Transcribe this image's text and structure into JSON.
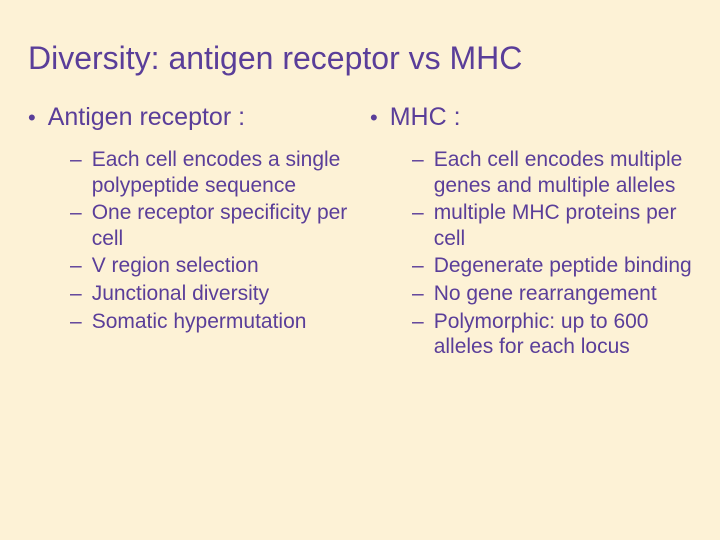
{
  "title": "Diversity: antigen receptor vs MHC",
  "left": {
    "heading": "Antigen receptor :",
    "items": [
      "Each cell encodes a single polypeptide sequence",
      "One receptor specificity per cell",
      "V region selection",
      "Junctional diversity",
      "Somatic hypermutation"
    ]
  },
  "right": {
    "heading": "MHC :",
    "items": [
      "Each cell encodes multiple genes and multiple alleles",
      "multiple MHC proteins per cell",
      "Degenerate peptide binding",
      "No gene rearrangement",
      "Polymorphic: up to 600 alleles for each locus"
    ]
  },
  "colors": {
    "background": "#fdf2d6",
    "text": "#5a3e99"
  }
}
